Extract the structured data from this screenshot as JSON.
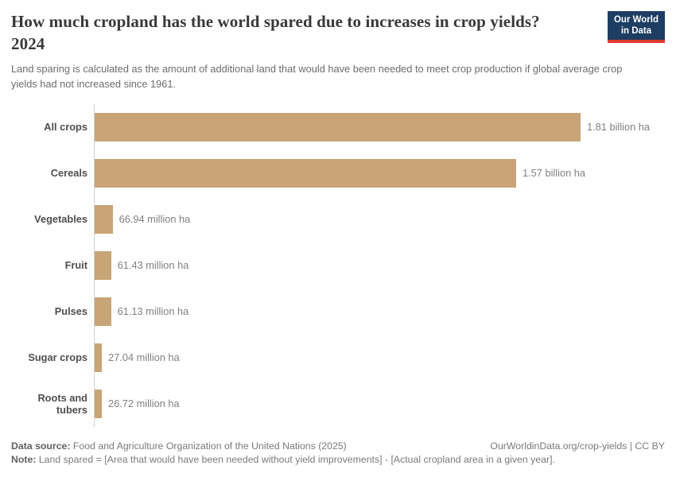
{
  "header": {
    "title": "How much cropland has the world spared due to increases in crop yields? 2024",
    "subtitle": "Land sparing is calculated as the amount of additional land that would have been needed to meet crop production if global average crop yields had not increased since 1961.",
    "logo": {
      "line1": "Our World",
      "line2": "in Data"
    }
  },
  "chart_data": {
    "type": "bar",
    "orientation": "horizontal",
    "title": "How much cropland has the world spared due to increases in crop yields? 2024",
    "categories": [
      "All crops",
      "Cereals",
      "Vegetables",
      "Fruit",
      "Pulses",
      "Sugar crops",
      "Roots and tubers"
    ],
    "values_million_ha": [
      1810,
      1570,
      66.94,
      61.43,
      61.13,
      27.04,
      26.72
    ],
    "value_labels": [
      "1.81 billion ha",
      "1.57 billion ha",
      "66.94 million ha",
      "61.43 million ha",
      "61.13 million ha",
      "27.04 million ha",
      "26.72 million ha"
    ],
    "xlabel": "",
    "ylabel": "",
    "x_range_million_ha": [
      0,
      1810
    ],
    "grid": false,
    "legend": false,
    "bar_color": "#c8a477",
    "unit": "ha"
  },
  "footer": {
    "datasource_label": "Data source:",
    "datasource_value": "Food and Agriculture Organization of the United Nations (2025)",
    "attribution": "OurWorldinData.org/crop-yields | CC BY",
    "note_label": "Note:",
    "note_value": "Land spared = [Area that would have been needed without yield improvements] - [Actual cropland area in a given year]."
  },
  "colors": {
    "bar": "#c8a477",
    "logo_background": "#1d3d63",
    "logo_stripe": "#e0392e",
    "axis_line": "#d2d2d2"
  }
}
